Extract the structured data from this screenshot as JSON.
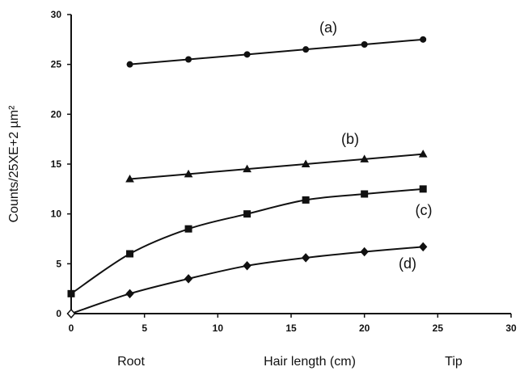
{
  "chart_data": {
    "type": "line",
    "title": "",
    "xlabel": "Hair length (cm)",
    "xlabel_left": "Root",
    "xlabel_right": "Tip",
    "ylabel": "Counts/25XE+2 µm²",
    "xlim": [
      0,
      30
    ],
    "ylim": [
      0,
      30
    ],
    "xticks": [
      0,
      5,
      10,
      15,
      20,
      25,
      30
    ],
    "yticks": [
      0,
      5,
      10,
      15,
      20,
      25,
      30
    ],
    "grid": false,
    "legend": "none",
    "series": [
      {
        "name": "(a)",
        "marker": "circle",
        "smooth": false,
        "x": [
          4,
          8,
          12,
          16,
          20,
          24
        ],
        "y": [
          25.0,
          25.5,
          26.0,
          26.5,
          27.0,
          27.5
        ]
      },
      {
        "name": "(b)",
        "marker": "triangle",
        "smooth": false,
        "x": [
          4,
          8,
          12,
          16,
          20,
          24
        ],
        "y": [
          13.5,
          14.0,
          14.5,
          15.0,
          15.5,
          16.0
        ]
      },
      {
        "name": "(c)",
        "marker": "square",
        "smooth": true,
        "x": [
          0,
          4,
          8,
          12,
          16,
          20,
          24
        ],
        "y": [
          2.0,
          6.0,
          8.5,
          10.0,
          11.4,
          12.0,
          12.5
        ]
      },
      {
        "name": "(d)",
        "marker": "diamond",
        "smooth": true,
        "x": [
          0,
          4,
          8,
          12,
          16,
          20,
          24
        ],
        "y": [
          0.0,
          2.0,
          3.5,
          4.8,
          5.6,
          6.2,
          6.7
        ]
      }
    ]
  }
}
